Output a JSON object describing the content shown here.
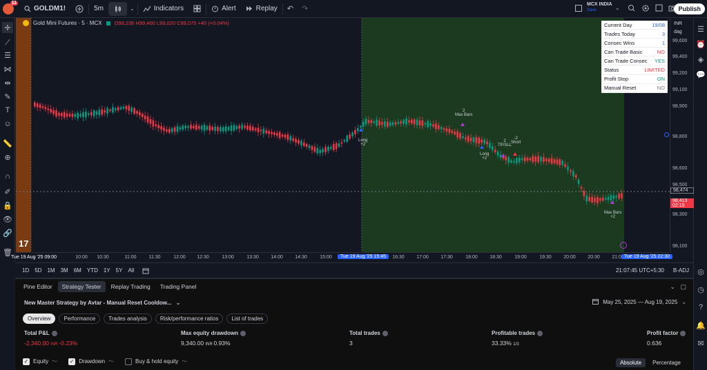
{
  "topbar": {
    "notification_count": "11",
    "symbol": "GOLDM1!",
    "interval": "5m",
    "indicators_label": "Indicators",
    "alert_label": "Alert",
    "replay_label": "Replay",
    "exchange_line1": "MCX INDIA",
    "exchange_line2": "Save",
    "publish_label": "Publish"
  },
  "legend": {
    "title": "Gold Mini Futures · 5 · MCX",
    "ohlc": "O99,236 H99,400 L99,020 C99,075 +40 (+0.04%)"
  },
  "info_table": [
    {
      "label": "Current Day",
      "value": "19/08",
      "color": "#2962ff"
    },
    {
      "label": "Trades Today",
      "value": "3",
      "color": "#2962ff"
    },
    {
      "label": "Consec Wins",
      "value": "1",
      "color": "#2962ff"
    },
    {
      "label": "Can Trade Basic",
      "value": "NO",
      "color": "#f23645"
    },
    {
      "label": "Can Trade Consec",
      "value": "YES",
      "color": "#089981"
    },
    {
      "label": "Status",
      "value": "LIMITED",
      "color": "#f23645"
    },
    {
      "label": "Profit Stop",
      "value": "ON",
      "color": "#089981"
    },
    {
      "label": "Manual Reset",
      "value": "NO",
      "color": "#787b86"
    }
  ],
  "price_axis": {
    "currency": "INR",
    "mode": "dag",
    "labels": [
      "99,600",
      "99,400",
      "99,200",
      "99,100",
      "98,900",
      "98,800",
      "98,600",
      "98,500",
      "98,300",
      "98,100"
    ],
    "current_price": "98,474",
    "last_price": "98,413",
    "countdown": "02:15"
  },
  "chart_marks": {
    "label_long_1": "Long",
    "label_long_1b": "+2",
    "label_maxbars_1a": "2",
    "label_maxbars_1b": "Max Bars",
    "label_long_2": "Long",
    "label_long_2b": "+2",
    "label_tpsl_a": "2",
    "label_tpsl_b": "TP/SLL",
    "label_short_a": "-2",
    "label_short_b": "Short",
    "label_maxbars_2a": "Max Bars",
    "label_maxbars_2b": "+2"
  },
  "time_axis": {
    "start_label": "Tue 19 Aug '25   09:00",
    "mid_label": "Tue 19 Aug '25   15:45",
    "end_label": "Tue 19 Aug '25   22:30",
    "ticks": [
      "10:00",
      "10:30",
      "11:00",
      "11:30",
      "12:00",
      "12:30",
      "13:00",
      "13:30",
      "14:00",
      "14:30",
      "15:00",
      "16:30",
      "17:00",
      "17:30",
      "18:00",
      "18:30",
      "19:00",
      "19:30",
      "20:00",
      "20:30",
      "21:00"
    ]
  },
  "bottom_controls": {
    "ranges": [
      "1D",
      "5D",
      "1M",
      "3M",
      "6M",
      "YTD",
      "1Y",
      "5Y",
      "All"
    ],
    "clock": "21:07:45 UTC+5:30",
    "adj": "B-ADJ"
  },
  "panel": {
    "tabs": [
      "Pine Editor",
      "Strategy Tester",
      "Replay Trading",
      "Trading Panel"
    ],
    "active_tab": "Strategy Tester",
    "strategy_name": "New Master Strategy by Avtar - Manual Reset Cooldow...",
    "date_range": "May 25, 2025 — Aug 19, 2025",
    "subtabs": [
      "Overview",
      "Performance",
      "Trades analysis",
      "Risk/performance ratios",
      "List of trades"
    ],
    "metrics": [
      {
        "label": "Total P&L",
        "value": "-2,340.00",
        "unit": "INR",
        "pct": "-0.23%",
        "color": "#f23645"
      },
      {
        "label": "Max equity drawdown",
        "value": "9,340.00",
        "unit": "INR",
        "pct": "0.93%",
        "color": "#d1d4dc"
      },
      {
        "label": "Total trades",
        "value": "3",
        "unit": "",
        "pct": "",
        "color": "#d1d4dc"
      },
      {
        "label": "Profitable trades",
        "value": "33.33%",
        "unit": "1/3",
        "pct": "",
        "color": "#d1d4dc"
      },
      {
        "label": "Profit factor",
        "value": "0.636",
        "unit": "",
        "pct": "",
        "color": "#d1d4dc"
      }
    ],
    "checks": [
      {
        "label": "Equity",
        "checked": true
      },
      {
        "label": "Drawdown",
        "checked": true
      },
      {
        "label": "Buy & hold equity",
        "checked": false
      }
    ],
    "mode_abs": "Absolute",
    "mode_pct": "Percentage"
  },
  "colors": {
    "up": "#089981",
    "down": "#f23645",
    "session_bg": "#1b3a1f",
    "premarket_bg": "#7a3a12",
    "accent": "#2962ff",
    "marker": "#b13bd1"
  }
}
